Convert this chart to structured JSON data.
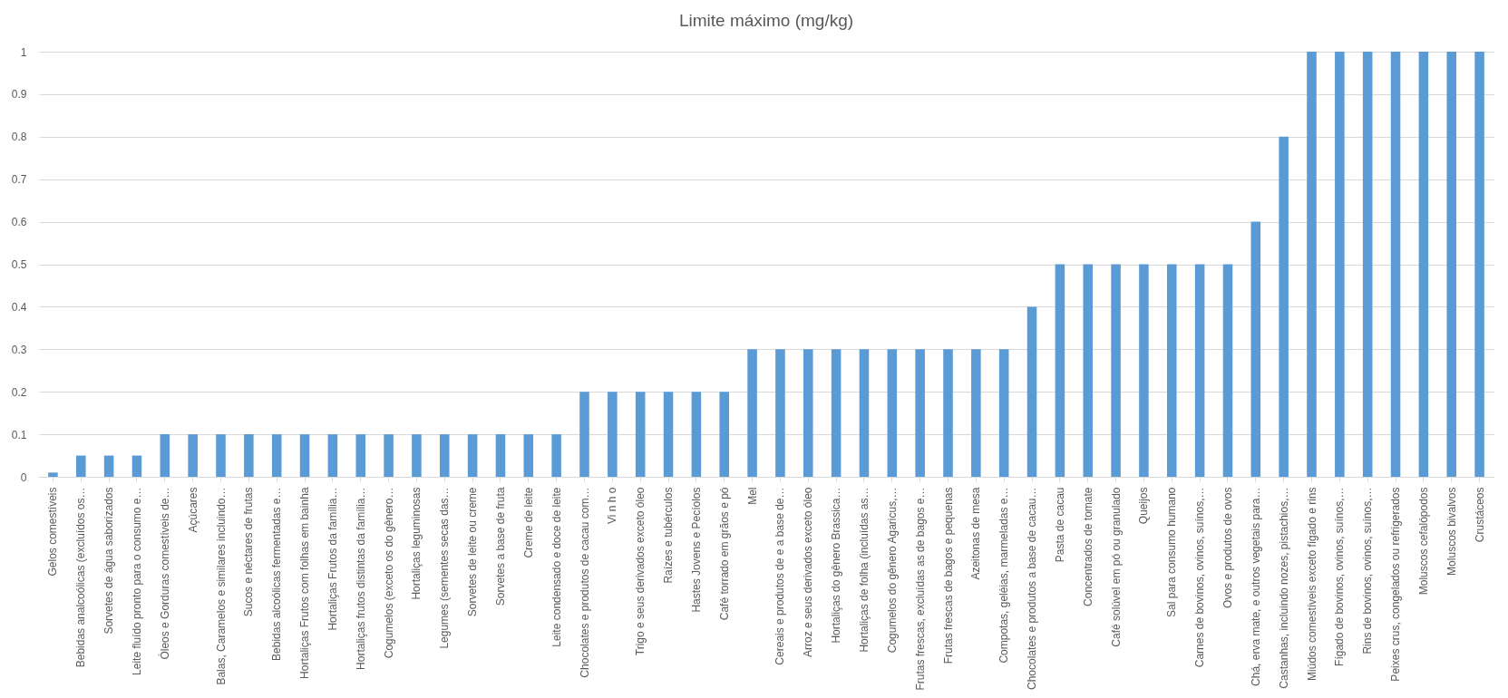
{
  "chart_data": {
    "type": "bar",
    "title": "Limite máximo (mg/kg)",
    "categories": [
      "Gelos comestíveis",
      "Bebidas analcoólicas (excluídos os…",
      "Sorvetes de água saborizados",
      "Leite fluído pronto para o consumo e…",
      "Óleos e Gorduras comestíveis de…",
      "Açúcares",
      "Balas, Caramelos e similares incluindo…",
      "Sucos e néctares de frutas",
      "Bebidas alcoólicas fermentadas e…",
      "Hortaliças Frutos com folhas em bainha",
      "Hortaliças Frutos da família…",
      "Hortaliças frutos distintas da família…",
      "Cogumelos (exceto os do gênero…",
      "Hortaliças leguminosas",
      "Legumes (sementes secas das…",
      "Sorvetes de leite ou creme",
      "Sorvetes a base de fruta",
      "Creme de leite",
      "Leite condensado e doce de leite",
      "Chocolates e produtos de cacau com…",
      "Vi n h o",
      "Trigo e seus derivados exceto óleo",
      "Raízes e tubérculos",
      "Hastes Jovens e Pecíolos",
      "Café torrado em grãos e pó",
      "Mel",
      "Cereais e produtos de e a base de…",
      "Arroz e seus derivados exceto óleo",
      "Hortaliças do gênero Brassica…",
      "Hortaliças de folha (incluídas as…",
      "Cogumelos do gênero Agaricus,…",
      "Frutas frescas, excluídas as de bagos e…",
      "Frutas frescas de bagos e pequenas",
      "Azeitonas de mesa",
      "Compotas, geléias, marmeladas e…",
      "Chocolates e produtos a base de cacau…",
      "Pasta de cacau",
      "Concentrados de tomate",
      "Café solúvel em pó ou granulado",
      "Queijos",
      "Sal para consumo humano",
      "Carnes de bovinos, ovinos, suínos,…",
      "Ovos e produtos de ovos",
      "Chá, erva mate, e outros vegetais para…",
      "Castanhas, incluindo nozes, pistachios,…",
      "Miúdos comestíveis exceto fígado e rins",
      "Fígado de bovinos, ovinos, suínos,…",
      "Rins de bovinos, ovinos, suínos,…",
      "Peixes crus, congelados ou refrigerados",
      "Moluscos cefalópodos",
      "Moluscos bivalvos",
      "Crustáceos"
    ],
    "values": [
      0.01,
      0.05,
      0.05,
      0.05,
      0.1,
      0.1,
      0.1,
      0.1,
      0.1,
      0.1,
      0.1,
      0.1,
      0.1,
      0.1,
      0.1,
      0.1,
      0.1,
      0.1,
      0.1,
      0.2,
      0.2,
      0.2,
      0.2,
      0.2,
      0.2,
      0.3,
      0.3,
      0.3,
      0.3,
      0.3,
      0.3,
      0.3,
      0.3,
      0.3,
      0.3,
      0.4,
      0.5,
      0.5,
      0.5,
      0.5,
      0.5,
      0.5,
      0.5,
      0.6,
      0.8,
      1,
      1,
      1,
      1,
      1,
      1,
      1
    ],
    "color": "#5b9bd5",
    "ylim": [
      0,
      1
    ],
    "yticks": [
      0,
      0.1,
      0.2,
      0.3,
      0.4,
      0.5,
      0.6,
      0.7,
      0.8,
      0.9,
      1
    ],
    "grid": "y"
  }
}
